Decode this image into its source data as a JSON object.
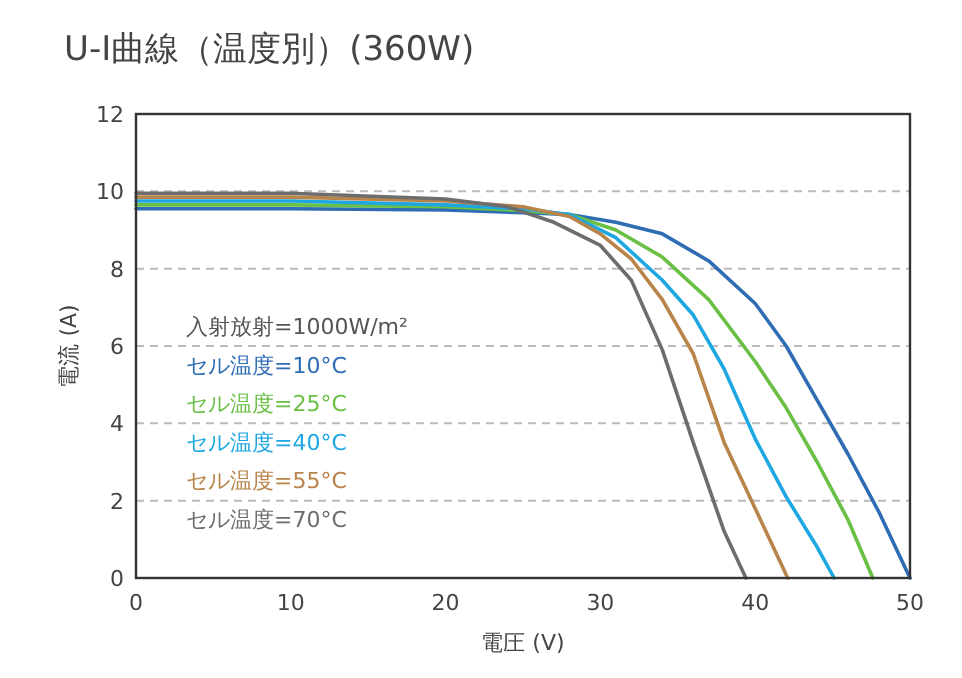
{
  "chart_data": {
    "type": "line",
    "title": "U-I曲線（温度別）(360W)",
    "xlabel": "電圧 (V)",
    "ylabel": "電流 (A)",
    "xlim": [
      0,
      50
    ],
    "ylim": [
      0,
      12
    ],
    "xticks": [
      0,
      10,
      20,
      30,
      40,
      50
    ],
    "yticks": [
      0,
      2,
      4,
      6,
      8,
      10,
      12
    ],
    "grid": "y",
    "legend": "left",
    "marker": "none",
    "line_style": "solid",
    "annotations": [
      "入射放射=1000W/m²"
    ],
    "series": [
      {
        "name": "セル温度=10°C",
        "color": "#2e6db4",
        "x": [
          0,
          10,
          20,
          25,
          28,
          31,
          34,
          37,
          40,
          42,
          44,
          46,
          48,
          50
        ],
        "values": [
          9.55,
          9.55,
          9.52,
          9.45,
          9.4,
          9.2,
          8.9,
          8.2,
          7.1,
          6.0,
          4.6,
          3.2,
          1.7,
          0
        ]
      },
      {
        "name": "セル温度=25°C",
        "color": "#6abf45",
        "x": [
          0,
          10,
          20,
          25,
          28,
          31,
          34,
          37,
          40,
          42,
          44,
          46,
          47.6
        ],
        "values": [
          9.65,
          9.65,
          9.6,
          9.5,
          9.4,
          9.0,
          8.3,
          7.2,
          5.6,
          4.4,
          3.0,
          1.5,
          0
        ]
      },
      {
        "name": "セル温度=40°C",
        "color": "#1ea7e1",
        "x": [
          0,
          10,
          20,
          25,
          28,
          31,
          34,
          36,
          38,
          40,
          42,
          44,
          45.1
        ],
        "values": [
          9.75,
          9.75,
          9.65,
          9.55,
          9.4,
          8.8,
          7.7,
          6.8,
          5.4,
          3.6,
          2.1,
          0.8,
          0
        ]
      },
      {
        "name": "セル温度=55°C",
        "color": "#b8844a",
        "x": [
          0,
          10,
          20,
          25,
          28,
          30,
          32,
          34,
          36,
          38,
          40,
          42.1
        ],
        "values": [
          9.85,
          9.85,
          9.75,
          9.6,
          9.35,
          8.9,
          8.25,
          7.2,
          5.8,
          3.5,
          1.8,
          0
        ]
      },
      {
        "name": "セル温度=70°C",
        "color": "#6d6d6d",
        "x": [
          0,
          10,
          20,
          24,
          27,
          30,
          32,
          34,
          36,
          38,
          39.4
        ],
        "values": [
          9.95,
          9.95,
          9.8,
          9.6,
          9.2,
          8.6,
          7.7,
          5.9,
          3.5,
          1.2,
          0
        ]
      }
    ]
  }
}
